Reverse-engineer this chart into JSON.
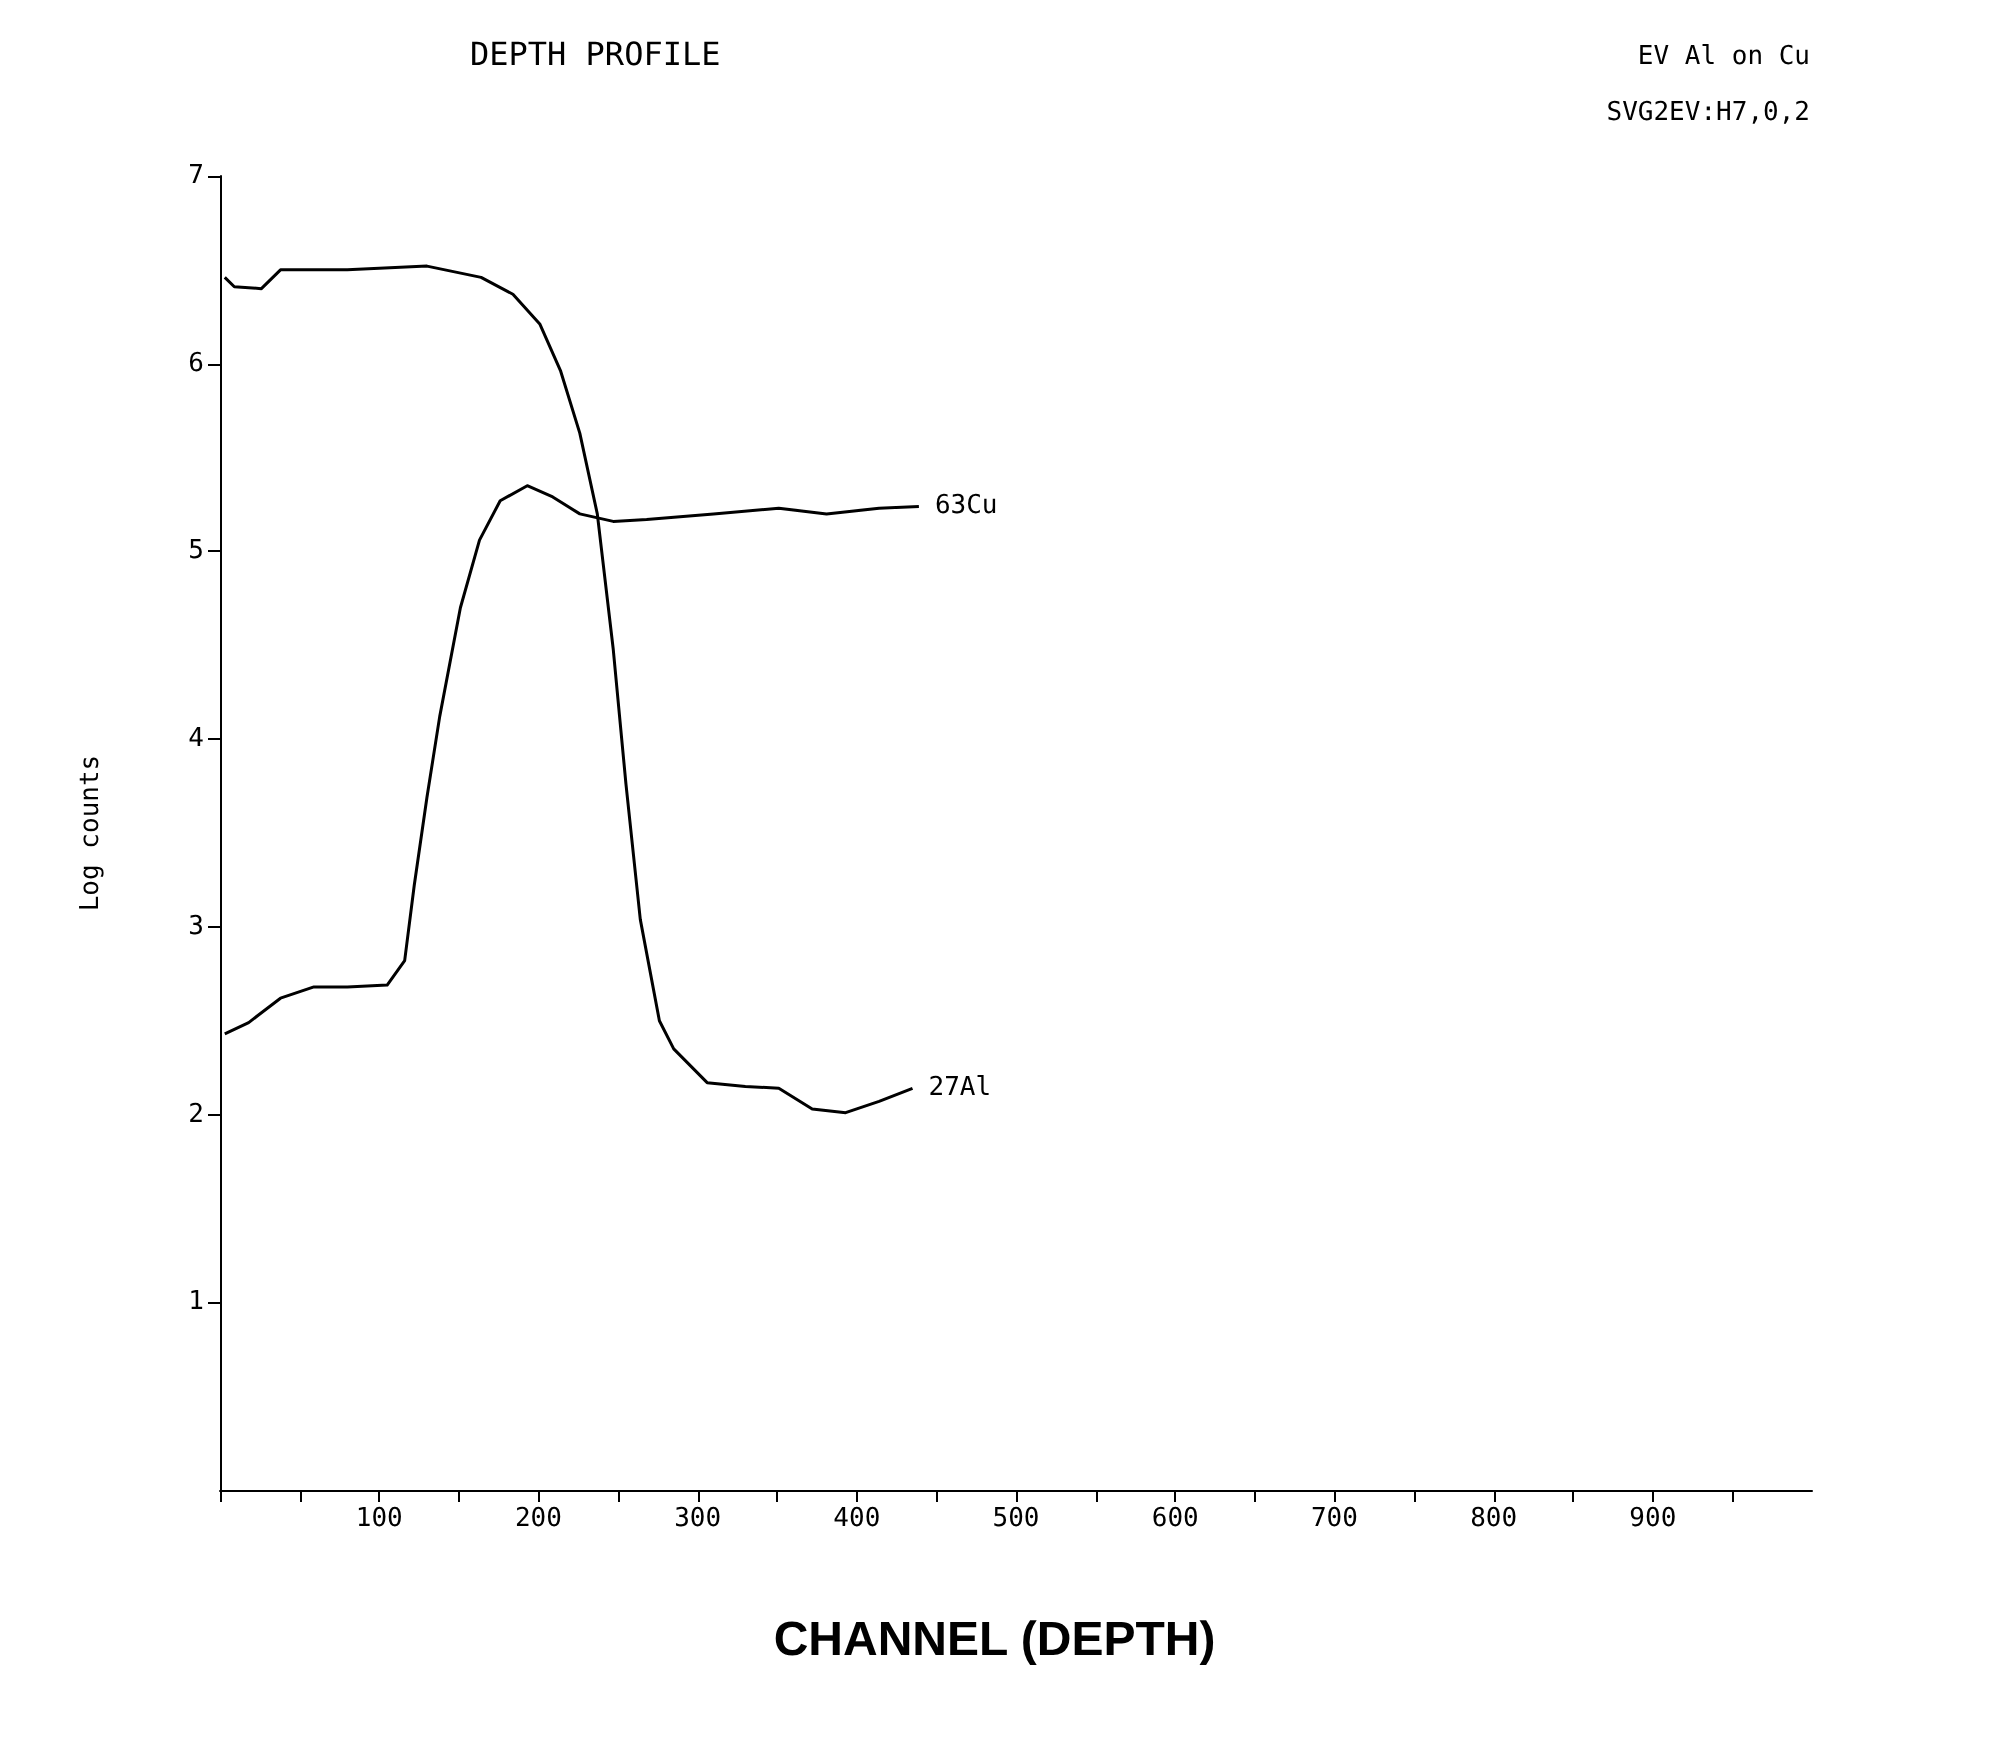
{
  "chart_data": {
    "type": "line",
    "title": "DEPTH PROFILE",
    "xlabel": "CHANNEL (DEPTH)",
    "ylabel": "Log counts",
    "annotations": [
      "EV Al on Cu",
      "SVG2EV:H7,0,2"
    ],
    "xlim": [
      0,
      1000
    ],
    "ylim": [
      0,
      7
    ],
    "xticks": [
      {
        "value": 0,
        "label": null
      },
      {
        "value": 50,
        "label": null
      },
      100,
      {
        "value": 150,
        "label": null
      },
      200,
      {
        "value": 250,
        "label": null
      },
      300,
      {
        "value": 350,
        "label": null
      },
      400,
      {
        "value": 450,
        "label": null
      },
      500,
      {
        "value": 550,
        "label": null
      },
      600,
      {
        "value": 650,
        "label": null
      },
      700,
      {
        "value": 750,
        "label": null
      },
      800,
      {
        "value": 850,
        "label": null
      },
      900,
      {
        "value": 950,
        "label": null
      }
    ],
    "yticks": [
      1,
      2,
      3,
      4,
      5,
      6,
      7
    ],
    "grid": false,
    "legend": false,
    "marker": "none",
    "series": [
      {
        "name": "27Al",
        "color": "#000000",
        "x": [
          3,
          9,
          26,
          38,
          80,
          130,
          164,
          184,
          201,
          214,
          226,
          237,
          247,
          255,
          264,
          276,
          285,
          306,
          330,
          351,
          372,
          393,
          414,
          435
        ],
        "values": [
          6.46,
          6.41,
          6.4,
          6.5,
          6.5,
          6.52,
          6.46,
          6.37,
          6.21,
          5.96,
          5.63,
          5.2,
          4.48,
          3.76,
          3.04,
          2.5,
          2.35,
          2.17,
          2.15,
          2.14,
          2.03,
          2.01,
          2.07,
          2.14
        ]
      },
      {
        "name": "63Cu",
        "color": "#000000",
        "x": [
          3,
          18,
          38,
          59,
          80,
          105,
          116,
          122,
          130,
          138,
          151,
          163,
          176,
          193,
          209,
          226,
          247,
          268,
          310,
          351,
          381,
          414,
          439
        ],
        "values": [
          2.43,
          2.49,
          2.62,
          2.68,
          2.68,
          2.69,
          2.82,
          3.22,
          3.69,
          4.12,
          4.7,
          5.06,
          5.27,
          5.35,
          5.29,
          5.2,
          5.16,
          5.17,
          5.2,
          5.23,
          5.2,
          5.23,
          5.24
        ]
      }
    ]
  }
}
